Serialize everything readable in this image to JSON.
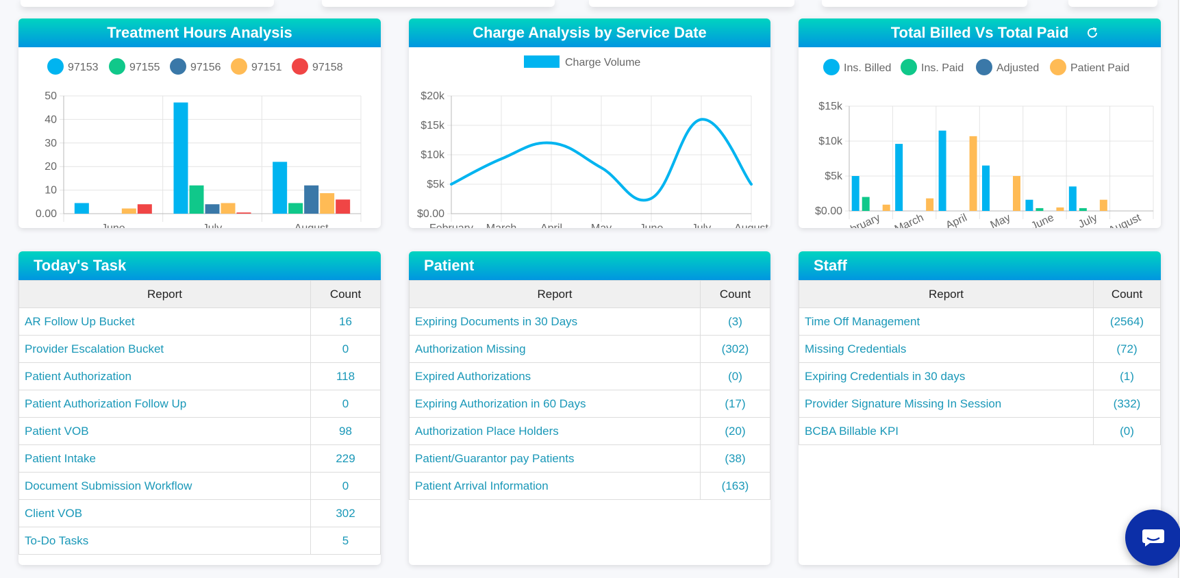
{
  "charts": {
    "treatment": {
      "title": "Treatment Hours Analysis",
      "legend": [
        {
          "name": "97153",
          "color": "#00b4f0"
        },
        {
          "name": "97155",
          "color": "#10c88a"
        },
        {
          "name": "97156",
          "color": "#3a78a8"
        },
        {
          "name": "97151",
          "color": "#ffbb55"
        },
        {
          "name": "97158",
          "color": "#f04545"
        }
      ],
      "chart_data": {
        "type": "bar",
        "categories": [
          "June",
          "July",
          "August"
        ],
        "series": [
          {
            "name": "97153",
            "values": [
              4.5,
              47.2,
              22
            ]
          },
          {
            "name": "97155",
            "values": [
              0,
              12,
              4.5
            ]
          },
          {
            "name": "97156",
            "values": [
              0,
              4,
              12
            ]
          },
          {
            "name": "97151",
            "values": [
              2.2,
              4.5,
              8.7
            ]
          },
          {
            "name": "97158",
            "values": [
              4,
              0.5,
              6
            ]
          }
        ],
        "ylim": [
          0,
          50
        ],
        "yticks": [
          "0.00",
          "10",
          "20",
          "30",
          "40",
          "50"
        ],
        "grid": true,
        "legend": "top"
      }
    },
    "charge": {
      "title": "Charge Analysis by Service Date",
      "legend": [
        {
          "name": "Charge Volume",
          "color": "#00b4f0"
        }
      ],
      "chart_data": {
        "type": "line",
        "categories": [
          "February",
          "March",
          "April",
          "May",
          "June",
          "July",
          "August"
        ],
        "series": [
          {
            "name": "Charge Volume",
            "values": [
              5000,
              9300,
              12000,
              7800,
              2600,
              16000,
              5000
            ]
          }
        ],
        "ylim": [
          0,
          20000
        ],
        "yticks": [
          "$0.00",
          "$5k",
          "$10k",
          "$15k",
          "$20k"
        ],
        "grid": true,
        "legend": "top"
      }
    },
    "billed": {
      "title": "Total Billed Vs Total Paid",
      "legend": [
        {
          "name": "Ins. Billed",
          "color": "#00b4f0"
        },
        {
          "name": "Ins. Paid",
          "color": "#10c88a"
        },
        {
          "name": "Adjusted",
          "color": "#3a78a8"
        },
        {
          "name": "Patient Paid",
          "color": "#ffbb55"
        }
      ],
      "chart_data": {
        "type": "bar",
        "categories": [
          "February",
          "March",
          "April",
          "May",
          "June",
          "July",
          "August"
        ],
        "series": [
          {
            "name": "Ins. Billed",
            "values": [
              5000,
              9600,
              11500,
              6500,
              1600,
              3500,
              0
            ]
          },
          {
            "name": "Ins. Paid",
            "values": [
              2000,
              0,
              0,
              0,
              400,
              400,
              0
            ]
          },
          {
            "name": "Adjusted",
            "values": [
              0,
              0,
              0,
              0,
              0,
              0,
              0
            ]
          },
          {
            "name": "Patient Paid",
            "values": [
              900,
              1800,
              10700,
              5000,
              500,
              1600,
              0
            ]
          }
        ],
        "ylim": [
          0,
          15000
        ],
        "yticks": [
          "$0.00",
          "$5k",
          "$10k",
          "$15k"
        ],
        "grid": true,
        "legend": "top"
      }
    }
  },
  "tables": {
    "today": {
      "title": "Today's Task",
      "headers": [
        "Report",
        "Count"
      ],
      "rows": [
        {
          "name": "AR Follow Up Bucket",
          "count": "16"
        },
        {
          "name": "Provider Escalation Bucket",
          "count": "0"
        },
        {
          "name": "Patient Authorization",
          "count": "118"
        },
        {
          "name": "Patient Authorization Follow Up",
          "count": "0"
        },
        {
          "name": "Patient VOB",
          "count": "98"
        },
        {
          "name": "Patient Intake",
          "count": "229"
        },
        {
          "name": "Document Submission Workflow",
          "count": "0"
        },
        {
          "name": "Client VOB",
          "count": "302"
        },
        {
          "name": "To-Do Tasks",
          "count": "5"
        }
      ]
    },
    "patient": {
      "title": "Patient",
      "headers": [
        "Report",
        "Count"
      ],
      "rows": [
        {
          "name": "Expiring Documents in 30 Days",
          "count": "(3)"
        },
        {
          "name": "Authorization Missing",
          "count": "(302)"
        },
        {
          "name": "Expired Authorizations",
          "count": "(0)"
        },
        {
          "name": "Expiring Authorization in 60 Days",
          "count": "(17)"
        },
        {
          "name": "Authorization Place Holders",
          "count": "(20)"
        },
        {
          "name": "Patient/Guarantor pay Patients",
          "count": "(38)"
        },
        {
          "name": "Patient Arrival Information",
          "count": "(163)"
        }
      ]
    },
    "staff": {
      "title": "Staff",
      "headers": [
        "Report",
        "Count"
      ],
      "rows": [
        {
          "name": "Time Off Management",
          "count": "(2564)"
        },
        {
          "name": "Missing Credentials",
          "count": "(72)"
        },
        {
          "name": "Expiring Credentials in 30 days",
          "count": "(1)"
        },
        {
          "name": "Provider Signature Missing In Session",
          "count": "(332)"
        },
        {
          "name": "BCBA Billable KPI",
          "count": "(0)"
        }
      ]
    }
  },
  "colors": {
    "header_top": "#00d4c0",
    "header_bottom": "#0096e0",
    "link": "#1a98b8",
    "chat": "#0c2fa8"
  }
}
